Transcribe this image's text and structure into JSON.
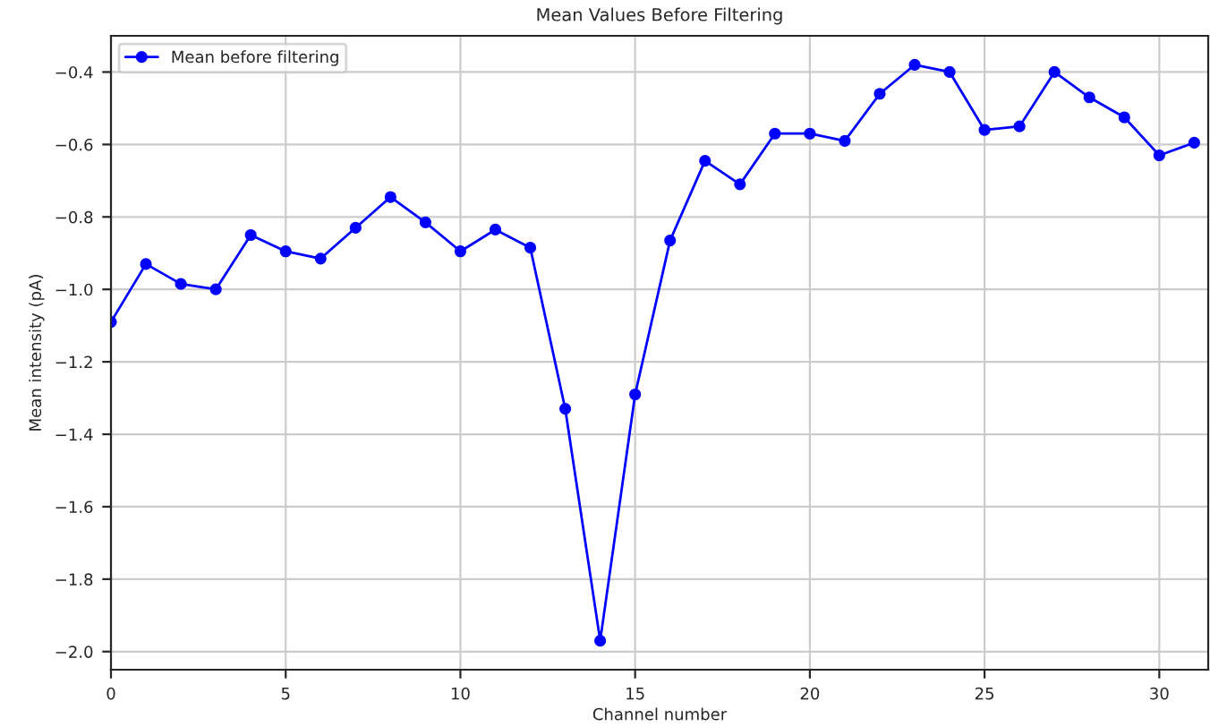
{
  "chart_data": {
    "type": "line",
    "title": "Mean Values Before Filtering",
    "xlabel": "Channel number",
    "ylabel": "Mean intensity (pA)",
    "x": [
      0,
      1,
      2,
      3,
      4,
      5,
      6,
      7,
      8,
      9,
      10,
      11,
      12,
      13,
      14,
      15,
      16,
      17,
      18,
      19,
      20,
      21,
      22,
      23,
      24,
      25,
      26,
      27,
      28,
      29,
      30,
      31
    ],
    "series": [
      {
        "name": "Mean before filtering",
        "color": "#0000ff",
        "values": [
          -1.09,
          -0.93,
          -0.985,
          -1.0,
          -0.85,
          -0.895,
          -0.915,
          -0.83,
          -0.745,
          -0.815,
          -0.895,
          -0.835,
          -0.885,
          -1.33,
          -1.97,
          -1.29,
          -0.865,
          -0.645,
          -0.71,
          -0.57,
          -0.57,
          -0.59,
          -0.46,
          -0.38,
          -0.4,
          -0.56,
          -0.55,
          -0.4,
          -0.47,
          -0.525,
          -0.63,
          -0.595
        ]
      }
    ],
    "xlim": [
      0,
      31.4
    ],
    "ylim": [
      -2.05,
      -0.3
    ],
    "xticks": [
      0,
      5,
      10,
      15,
      20,
      25,
      30
    ],
    "yticks": [
      {
        "value": -2.0,
        "label": "−2.0"
      },
      {
        "value": -1.8,
        "label": "−1.8"
      },
      {
        "value": -1.6,
        "label": "−1.6"
      },
      {
        "value": -1.4,
        "label": "−1.4"
      },
      {
        "value": -1.2,
        "label": "−1.2"
      },
      {
        "value": -1.0,
        "label": "−1.0"
      },
      {
        "value": -0.8,
        "label": "−0.8"
      },
      {
        "value": -0.6,
        "label": "−0.6"
      },
      {
        "value": -0.4,
        "label": "−0.4"
      }
    ],
    "grid": true,
    "legend": "top left",
    "marker": "circle",
    "line_style": "solid"
  }
}
